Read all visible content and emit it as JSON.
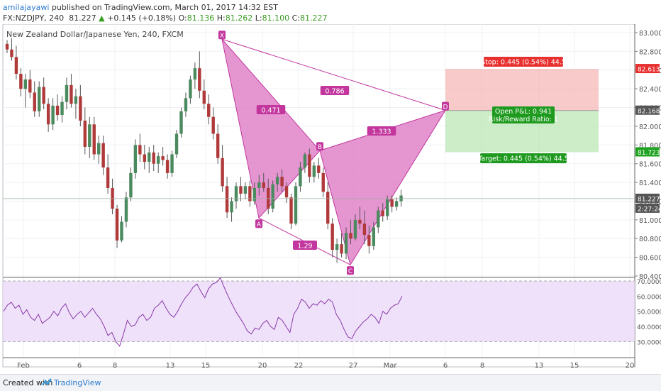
{
  "header": {
    "user": "amilajayawi",
    "published": "published on TradingView.com, March 01, 2017 14:32 EST",
    "symbol_line": "FX:NZDJPY, 240",
    "last": "81.227",
    "change_arrow": "▲",
    "change": "+0.145 (+0.18%)",
    "o_label": "O:",
    "o": "81.136",
    "h_label": "H:",
    "h": "81.262",
    "l_label": "L:",
    "l": "81.100",
    "c_label": "C:",
    "c": "81.227"
  },
  "chart_data": {
    "type": "candlestick",
    "title": "New Zealand Dollar/Japanese Yen, 240, FXCM",
    "ylim": [
      80.4,
      83.0
    ],
    "y_ticks": [
      "83.000",
      "82.800",
      "82.600",
      "82.400",
      "82.200",
      "82.000",
      "81.800",
      "81.600",
      "81.400",
      "81.200",
      "81.000",
      "80.800",
      "80.600",
      "80.400"
    ],
    "x_ticks": [
      "Feb",
      "6",
      "8",
      "13",
      "15",
      "20",
      "22",
      "27",
      "Mar",
      "6",
      "8",
      "13",
      "15",
      "20"
    ],
    "price_labels": [
      {
        "value": "82.613",
        "color": "#e8302f"
      },
      {
        "value": "82.168",
        "color": "#555555"
      },
      {
        "value": "81.723",
        "color": "#1fa21f"
      },
      {
        "value": "81.227",
        "color": "#555555"
      },
      {
        "value": "2:27:24",
        "color": "#555555"
      }
    ],
    "pattern": {
      "points": [
        {
          "name": "X",
          "date": "Feb 16",
          "price": 82.93
        },
        {
          "name": "A",
          "date": "Feb 20",
          "price": 81.02
        },
        {
          "name": "B",
          "date": "Feb 23",
          "price": 81.74
        },
        {
          "name": "C",
          "date": "Feb 27",
          "price": 80.52
        },
        {
          "name": "D",
          "date": "Mar 6",
          "price": 82.17
        }
      ],
      "ratios": [
        {
          "label": "0.471",
          "color": "#c2369e"
        },
        {
          "label": "0.786",
          "color": "#c2369e"
        },
        {
          "label": "1.333",
          "color": "#c2369e"
        },
        {
          "label": "1.29",
          "color": "#c2369e"
        }
      ]
    },
    "position": {
      "stop_label": "Stop: 0.445 (0.54%) 44.5",
      "pnl_label": "Open P&L: 0.941",
      "rr_label": "Risk/Reward Ratio: 1",
      "target_label": "Target: 0.445 (0.54%) 44.5",
      "entry": 82.168,
      "stop": 82.613,
      "target": 81.723
    },
    "rsi": {
      "ylim": [
        25,
        70
      ],
      "y_ticks": [
        "70.0000",
        "60.0000",
        "50.0000",
        "40.0000",
        "30.0000"
      ],
      "band": [
        30,
        70
      ],
      "values": [
        50,
        54,
        56,
        52,
        54,
        48,
        51,
        46,
        44,
        48,
        42,
        44,
        46,
        50,
        47,
        52,
        55,
        49,
        45,
        48,
        50,
        46,
        49,
        52,
        48,
        45,
        40,
        34,
        36,
        30,
        27,
        35,
        44,
        40,
        41,
        46,
        48,
        44,
        46,
        52,
        54,
        57,
        52,
        48,
        46,
        50,
        55,
        59,
        62,
        66,
        68,
        63,
        59,
        65,
        68,
        69,
        72,
        66,
        60,
        55,
        50,
        46,
        42,
        37,
        35,
        39,
        38,
        42,
        44,
        40,
        38,
        46,
        44,
        40,
        36,
        48,
        52,
        58,
        56,
        52,
        55,
        54,
        57,
        55,
        58,
        56,
        48,
        44,
        38,
        33,
        32,
        37,
        40,
        43,
        45,
        48,
        46,
        42,
        50,
        48,
        52,
        54,
        55,
        60
      ]
    },
    "candles": [
      [
        82.88,
        82.92,
        82.78,
        82.82
      ],
      [
        82.82,
        82.94,
        82.7,
        82.74
      ],
      [
        82.74,
        82.86,
        82.5,
        82.56
      ],
      [
        82.56,
        82.62,
        82.32,
        82.4
      ],
      [
        82.4,
        82.56,
        82.2,
        82.5
      ],
      [
        82.5,
        82.6,
        82.3,
        82.36
      ],
      [
        82.36,
        82.48,
        82.1,
        82.16
      ],
      [
        82.16,
        82.48,
        82.1,
        82.42
      ],
      [
        82.42,
        82.52,
        82.18,
        82.24
      ],
      [
        82.24,
        82.3,
        81.94,
        82.02
      ],
      [
        82.02,
        82.3,
        81.96,
        82.22
      ],
      [
        82.22,
        82.34,
        82.06,
        82.12
      ],
      [
        82.12,
        82.32,
        82.04,
        82.26
      ],
      [
        82.26,
        82.52,
        82.18,
        82.44
      ],
      [
        82.44,
        82.56,
        82.2,
        82.24
      ],
      [
        82.24,
        82.4,
        82.08,
        82.32
      ],
      [
        82.32,
        82.44,
        82.0,
        82.06
      ],
      [
        82.06,
        82.2,
        81.7,
        81.78
      ],
      [
        81.78,
        82.1,
        81.66,
        82.02
      ],
      [
        82.02,
        82.1,
        81.64,
        81.7
      ],
      [
        81.7,
        81.9,
        81.6,
        81.82
      ],
      [
        81.82,
        81.9,
        81.48,
        81.56
      ],
      [
        81.56,
        81.7,
        81.28,
        81.34
      ],
      [
        81.34,
        81.44,
        81.06,
        81.12
      ],
      [
        81.12,
        81.16,
        80.7,
        80.78
      ],
      [
        80.78,
        81.04,
        80.76,
        80.98
      ],
      [
        80.98,
        81.3,
        80.92,
        81.24
      ],
      [
        81.24,
        81.56,
        81.2,
        81.5
      ],
      [
        81.5,
        81.86,
        81.44,
        81.8
      ],
      [
        81.8,
        81.92,
        81.62,
        81.7
      ],
      [
        81.7,
        81.8,
        81.54,
        81.62
      ],
      [
        81.62,
        81.78,
        81.5,
        81.72
      ],
      [
        81.72,
        81.8,
        81.52,
        81.6
      ],
      [
        81.6,
        81.72,
        81.5,
        81.68
      ],
      [
        81.68,
        81.78,
        81.58,
        81.64
      ],
      [
        81.64,
        81.7,
        81.44,
        81.5
      ],
      [
        81.5,
        81.74,
        81.46,
        81.7
      ],
      [
        81.7,
        81.96,
        81.66,
        81.92
      ],
      [
        81.92,
        82.2,
        81.88,
        82.16
      ],
      [
        82.16,
        82.36,
        82.1,
        82.3
      ],
      [
        82.3,
        82.54,
        82.24,
        82.5
      ],
      [
        82.5,
        82.68,
        82.4,
        82.62
      ],
      [
        82.62,
        82.8,
        82.3,
        82.38
      ],
      [
        82.38,
        82.5,
        82.18,
        82.24
      ],
      [
        82.24,
        82.34,
        82.02,
        82.1
      ],
      [
        82.1,
        82.2,
        81.86,
        81.92
      ],
      [
        81.92,
        82.02,
        81.6,
        81.66
      ],
      [
        81.66,
        81.8,
        81.3,
        81.36
      ],
      [
        81.36,
        81.46,
        81.02,
        81.08
      ],
      [
        81.08,
        81.24,
        80.98,
        81.2
      ],
      [
        81.2,
        81.4,
        81.12,
        81.36
      ],
      [
        81.36,
        81.46,
        81.2,
        81.28
      ],
      [
        81.28,
        81.4,
        81.22,
        81.36
      ],
      [
        81.36,
        81.42,
        81.14,
        81.2
      ],
      [
        81.2,
        81.4,
        81.16,
        81.34
      ],
      [
        81.34,
        81.48,
        81.26,
        81.4
      ],
      [
        81.4,
        81.5,
        81.3,
        81.34
      ],
      [
        81.34,
        81.44,
        81.06,
        81.12
      ],
      [
        81.12,
        81.42,
        81.08,
        81.38
      ],
      [
        81.38,
        81.5,
        81.3,
        81.46
      ],
      [
        81.46,
        81.54,
        81.3,
        81.36
      ],
      [
        81.36,
        81.4,
        81.18,
        81.24
      ],
      [
        81.24,
        81.28,
        80.9,
        80.96
      ],
      [
        80.96,
        81.4,
        80.94,
        81.36
      ],
      [
        81.36,
        81.62,
        81.3,
        81.56
      ],
      [
        81.56,
        81.72,
        81.5,
        81.7
      ],
      [
        81.7,
        81.76,
        81.4,
        81.46
      ],
      [
        81.46,
        81.62,
        81.4,
        81.58
      ],
      [
        81.58,
        81.66,
        81.44,
        81.5
      ],
      [
        81.5,
        81.56,
        81.24,
        81.3
      ],
      [
        81.3,
        81.4,
        80.9,
        80.96
      ],
      [
        80.96,
        81.02,
        80.6,
        80.68
      ],
      [
        80.68,
        80.8,
        80.54,
        80.74
      ],
      [
        80.74,
        80.86,
        80.6,
        80.64
      ],
      [
        80.64,
        80.92,
        80.58,
        80.86
      ],
      [
        80.86,
        81.0,
        80.74,
        80.8
      ],
      [
        80.8,
        81.06,
        80.78,
        81.0
      ],
      [
        81.0,
        81.14,
        80.9,
        80.96
      ],
      [
        80.96,
        81.1,
        80.74,
        80.84
      ],
      [
        80.84,
        80.94,
        80.64,
        80.72
      ],
      [
        80.72,
        80.98,
        80.68,
        80.92
      ],
      [
        80.92,
        81.14,
        80.86,
        81.1
      ],
      [
        81.1,
        81.18,
        80.98,
        81.04
      ],
      [
        81.04,
        81.26,
        81.0,
        81.22
      ],
      [
        81.22,
        81.26,
        81.08,
        81.14
      ],
      [
        81.14,
        81.24,
        81.1,
        81.2
      ],
      [
        81.2,
        81.32,
        81.14,
        81.26
      ]
    ]
  }
}
